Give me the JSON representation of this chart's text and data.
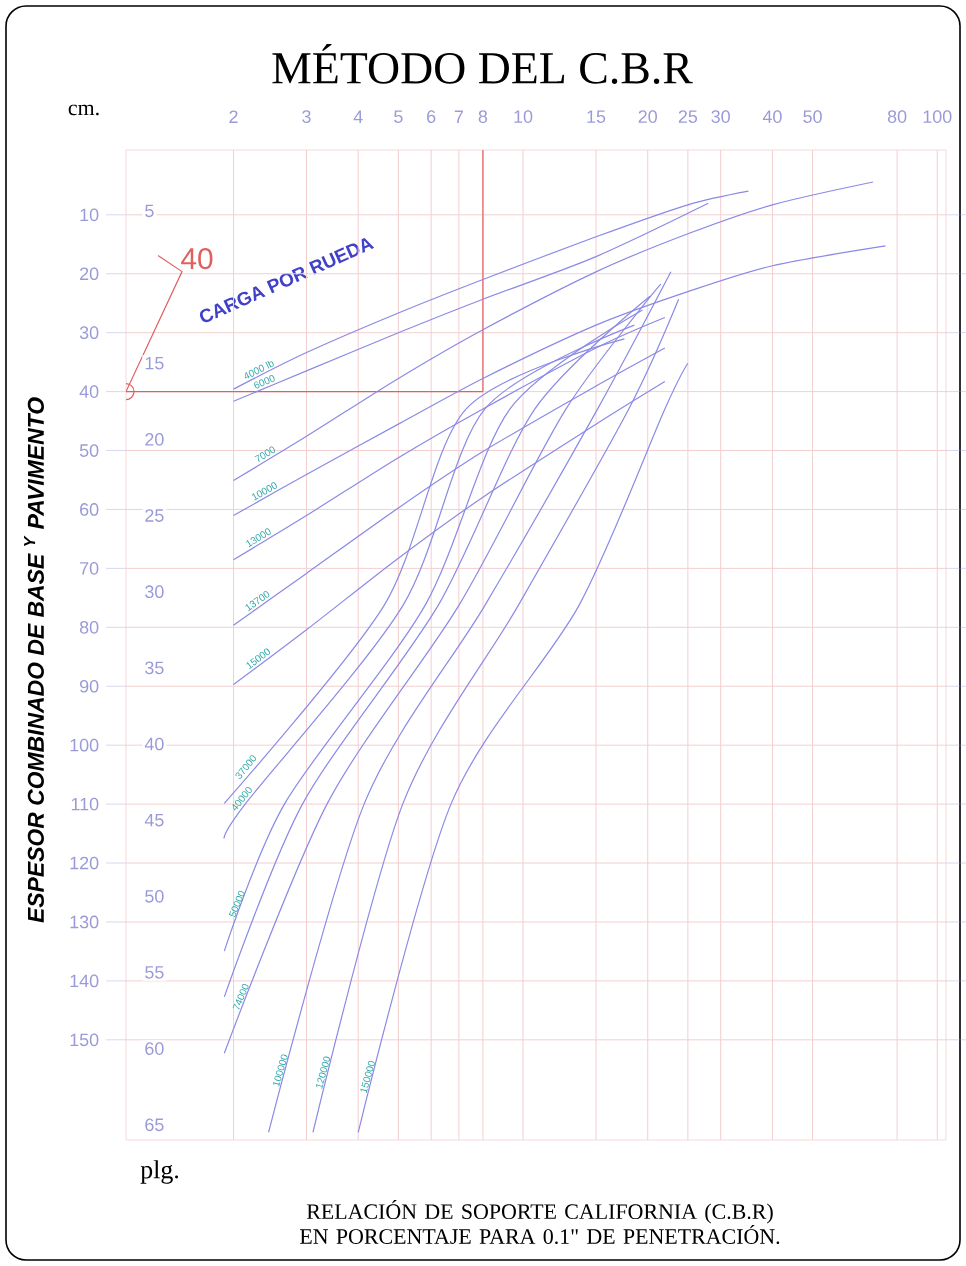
{
  "chart_data": {
    "type": "line",
    "title": "MÉTODO DEL C.B.R",
    "xlabel": "RELACIÓN DE SOPORTE CALIFORNIA (C.B.R) EN PORCENTAJE PARA 0.1\" DE PENETRACIÓN.",
    "ylabel": "ESPESOR COMBINADO DE BASE $^{Y}$ PAVIMENTO",
    "annotations": [
      "cm.",
      "plg.",
      "CARGA POR RUEDA"
    ],
    "xlim": [
      1.1,
      105
    ],
    "xticks": [
      2,
      3,
      4,
      5,
      6,
      7,
      8,
      10,
      15,
      20,
      25,
      30,
      40,
      50,
      80,
      100
    ],
    "ylim": [
      167,
      -1
    ],
    "yticks": [
      10,
      20,
      30,
      40,
      50,
      60,
      70,
      80,
      90,
      100,
      110,
      120,
      130,
      140,
      150
    ],
    "y2lim": [
      66,
      1
    ],
    "y2ticks": [
      5,
      15,
      20,
      25,
      30,
      35,
      40,
      45,
      50,
      55,
      60,
      65
    ],
    "grid": true,
    "log": "x",
    "ref_lines": [
      {
        "axis": "x",
        "value": 8,
        "color": "#e06060"
      },
      {
        "axis": "y",
        "value": 40,
        "label": "40",
        "color": "#e06060"
      }
    ],
    "series": [
      {
        "name": "4000 lb",
        "color": "#8a8ae6",
        "axis": "y2",
        "x": [
          2,
          3,
          5,
          8,
          15,
          25,
          35
        ],
        "values": [
          16.7,
          14.3,
          11.7,
          9.5,
          6.7,
          4.6,
          3.7
        ]
      },
      {
        "name": "6000",
        "color": "#8a8ae6",
        "axis": "y2",
        "x": [
          2,
          3,
          5,
          8,
          15,
          28
        ],
        "values": [
          17.5,
          15.5,
          13.0,
          10.8,
          8.0,
          4.5
        ]
      },
      {
        "name": "7000",
        "color": "#8a8ae6",
        "axis": "y2",
        "x": [
          2,
          3,
          5,
          8,
          15,
          25,
          40,
          70
        ],
        "values": [
          22.7,
          19.8,
          16.0,
          12.8,
          9.0,
          6.5,
          4.6,
          3.1
        ]
      },
      {
        "name": "10000",
        "color": "#8a8ae6",
        "axis": "y2",
        "x": [
          2,
          3,
          5,
          8,
          15,
          25,
          40,
          75
        ],
        "values": [
          25.0,
          22.3,
          19.0,
          16.0,
          12.5,
          10.3,
          8.6,
          7.3
        ]
      },
      {
        "name": "13000",
        "color": "#8a8ae6",
        "axis": "y2",
        "x": [
          2,
          3,
          5,
          8,
          15,
          22
        ],
        "values": [
          27.9,
          25.0,
          21.2,
          18.0,
          14.0,
          12.0
        ]
      },
      {
        "name": "13700",
        "color": "#8a8ae6",
        "axis": "y2",
        "x": [
          2,
          3,
          5,
          8,
          15,
          22
        ],
        "values": [
          32.2,
          28.8,
          24.5,
          20.8,
          16.5,
          14.0
        ]
      },
      {
        "name": "15000",
        "color": "#8a8ae6",
        "axis": "y2",
        "x": [
          2,
          3,
          5,
          8,
          15,
          22
        ],
        "values": [
          36.1,
          32.5,
          27.8,
          23.8,
          19.0,
          16.2
        ]
      },
      {
        "name": "37000",
        "color": "#8a8ae6",
        "axis": "y2",
        "x": [
          1.9,
          4.62,
          7.29,
          17.57
        ],
        "values": [
          43.9,
          30.9,
          18.0,
          13.4
        ]
      },
      {
        "name": "40000",
        "color": "#8a8ae6",
        "axis": "y2",
        "x": [
          1.9,
          2.14,
          5.13,
          8.09,
          18.57
        ],
        "values": [
          46.2,
          43.9,
          30.9,
          18.0,
          12.5
        ]
      },
      {
        "name": "50000",
        "color": "#8a8ae6",
        "axis": "y2",
        "x": [
          1.9,
          2.66,
          5.8,
          9.3,
          19.43
        ],
        "values": [
          53.6,
          43.9,
          30.9,
          18.0,
          11.5
        ]
      },
      {
        "color": "#8a8ae6",
        "axis": "y2",
        "x": [
          1.9,
          2.94,
          6.24,
          10.68,
          20.25
        ],
        "values": [
          56.6,
          43.9,
          30.9,
          18.0,
          10.6
        ]
      },
      {
        "name": "74000",
        "color": "#8a8ae6",
        "axis": "y2",
        "x": [
          1.9,
          3.37,
          7.0,
          12.7,
          21.5
        ],
        "values": [
          60.3,
          43.9,
          30.9,
          18.0,
          9.8
        ]
      },
      {
        "name": "100000",
        "color": "#8a8ae6",
        "axis": "y2",
        "x": [
          2.43,
          4.14,
          8.09,
          15.14,
          22.75
        ],
        "values": [
          65.5,
          43.9,
          30.9,
          18.0,
          9.0
        ]
      },
      {
        "name": "120000",
        "color": "#8a8ae6",
        "axis": "y2",
        "x": [
          3.11,
          5.13,
          9.74,
          18.0,
          23.75
        ],
        "values": [
          65.5,
          43.9,
          30.9,
          18.0,
          10.8
        ]
      },
      {
        "name": "150000",
        "color": "#8a8ae6",
        "axis": "y2",
        "x": [
          4.0,
          6.71,
          13.65,
          22.0,
          25.0
        ],
        "values": [
          65.5,
          43.9,
          30.9,
          18.0,
          15.0
        ]
      }
    ]
  }
}
